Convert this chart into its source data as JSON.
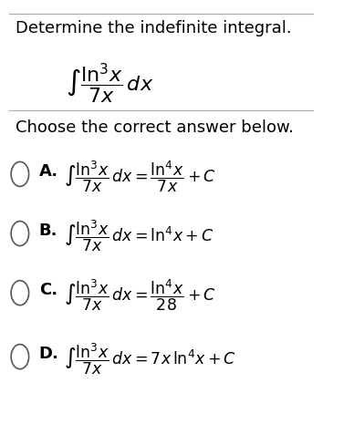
{
  "bg_color": "#ffffff",
  "text_color": "#000000",
  "title": "Determine the indefinite integral.",
  "subtitle": "Choose the correct answer below.",
  "problem": "$\\int \\frac{\\ln^{3}x}{7x}\\,dx$",
  "options": [
    {
      "label": "A.",
      "expr": "$\\int \\frac{\\ln^{3}x}{7x}\\,dx = \\frac{\\ln^{4}x}{7x} + C$"
    },
    {
      "label": "B.",
      "expr": "$\\int \\frac{\\ln^{3}x}{7x}\\,dx = \\ln^{4}x + C$"
    },
    {
      "label": "C.",
      "expr": "$\\int \\frac{\\ln^{3}x}{7x}\\,dx = \\frac{\\ln^{4}x}{28} + C$"
    },
    {
      "label": "D.",
      "expr": "$\\int \\frac{\\ln^{3}x}{7x}\\,dx = 7x\\ln^{4}x + C$"
    }
  ],
  "font_size_title": 13,
  "font_size_problem": 15,
  "font_size_options": 13,
  "font_size_subtitle": 13
}
